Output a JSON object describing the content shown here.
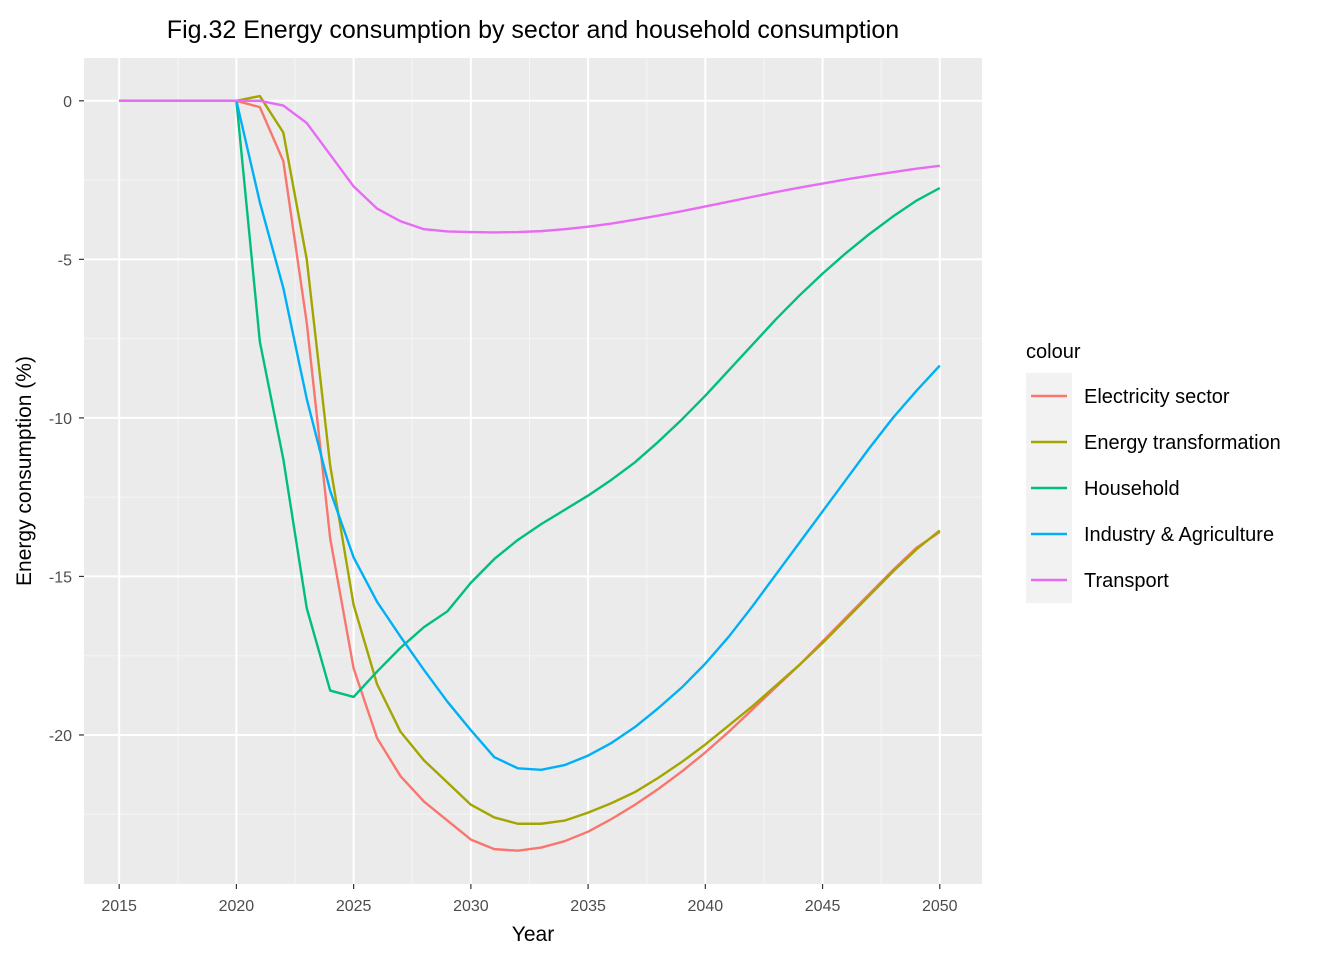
{
  "chart_data": {
    "type": "line",
    "title": "Fig.32 Energy consumption by sector and household consumption",
    "xlabel": "Year",
    "ylabel": "Energy consumption (%)",
    "xlim": [
      2013.5,
      2051.8
    ],
    "ylim": [
      -24.7,
      1.35
    ],
    "x_ticks": [
      2015,
      2020,
      2025,
      2030,
      2035,
      2040,
      2045,
      2050
    ],
    "x_tick_labels": [
      "2015",
      "2020",
      "2025",
      "2030",
      "2035",
      "2040",
      "2045",
      "2050"
    ],
    "y_ticks": [
      0,
      -5,
      -10,
      -15,
      -20
    ],
    "y_tick_labels": [
      "0",
      "-5",
      "-10",
      "-15",
      "-20"
    ],
    "grid": true,
    "legend": {
      "title": "colour",
      "position": "right"
    },
    "series": [
      {
        "name": "Electricity sector",
        "color": "#F8766D",
        "x": [
          2015,
          2016,
          2017,
          2018,
          2019,
          2020,
          2021,
          2022,
          2023,
          2024,
          2025,
          2026,
          2027,
          2028,
          2029,
          2030,
          2031,
          2032,
          2033,
          2034,
          2035,
          2036,
          2037,
          2038,
          2039,
          2040,
          2041,
          2042,
          2043,
          2044,
          2045,
          2046,
          2047,
          2048,
          2049,
          2050
        ],
        "y": [
          0,
          0,
          0,
          0,
          0,
          0,
          -0.2,
          -1.9,
          -7.0,
          -13.8,
          -17.9,
          -20.1,
          -21.3,
          -22.1,
          -22.7,
          -23.3,
          -23.6,
          -23.65,
          -23.55,
          -23.35,
          -23.05,
          -22.65,
          -22.2,
          -21.7,
          -21.15,
          -20.55,
          -19.9,
          -19.2,
          -18.5,
          -17.8,
          -17.05,
          -16.3,
          -15.55,
          -14.8,
          -14.1,
          -13.6
        ]
      },
      {
        "name": "Energy transformation",
        "color": "#A3A500",
        "x": [
          2015,
          2016,
          2017,
          2018,
          2019,
          2020,
          2021,
          2022,
          2023,
          2024,
          2025,
          2026,
          2027,
          2028,
          2029,
          2030,
          2031,
          2032,
          2033,
          2034,
          2035,
          2036,
          2037,
          2038,
          2039,
          2040,
          2041,
          2042,
          2043,
          2044,
          2045,
          2046,
          2047,
          2048,
          2049,
          2050
        ],
        "y": [
          0,
          0,
          0,
          0,
          0,
          0,
          0.15,
          -1.0,
          -5.0,
          -11.5,
          -15.9,
          -18.4,
          -19.9,
          -20.8,
          -21.5,
          -22.2,
          -22.6,
          -22.8,
          -22.8,
          -22.7,
          -22.45,
          -22.15,
          -21.8,
          -21.35,
          -20.85,
          -20.3,
          -19.7,
          -19.1,
          -18.45,
          -17.8,
          -17.1,
          -16.35,
          -15.6,
          -14.85,
          -14.15,
          -13.55
        ]
      },
      {
        "name": "Household",
        "color": "#00BF7D",
        "x": [
          2015,
          2016,
          2017,
          2018,
          2019,
          2020,
          2021,
          2022,
          2023,
          2024,
          2025,
          2026,
          2027,
          2028,
          2029,
          2030,
          2031,
          2032,
          2033,
          2034,
          2035,
          2036,
          2037,
          2038,
          2039,
          2040,
          2041,
          2042,
          2043,
          2044,
          2045,
          2046,
          2047,
          2048,
          2049,
          2050
        ],
        "y": [
          0,
          0,
          0,
          0,
          0,
          0,
          -7.6,
          -11.3,
          -16.0,
          -18.6,
          -18.8,
          -18.0,
          -17.25,
          -16.6,
          -16.1,
          -15.2,
          -14.45,
          -13.85,
          -13.35,
          -12.9,
          -12.45,
          -11.95,
          -11.4,
          -10.75,
          -10.05,
          -9.3,
          -8.5,
          -7.7,
          -6.9,
          -6.15,
          -5.45,
          -4.8,
          -4.2,
          -3.65,
          -3.15,
          -2.75
        ]
      },
      {
        "name": "Industry & Agriculture",
        "color": "#00B0F6",
        "x": [
          2015,
          2016,
          2017,
          2018,
          2019,
          2020,
          2021,
          2022,
          2023,
          2024,
          2025,
          2026,
          2027,
          2028,
          2029,
          2030,
          2031,
          2032,
          2033,
          2034,
          2035,
          2036,
          2037,
          2038,
          2039,
          2040,
          2041,
          2042,
          2043,
          2044,
          2045,
          2046,
          2047,
          2048,
          2049,
          2050
        ],
        "y": [
          0,
          0,
          0,
          0,
          0,
          0,
          -3.2,
          -5.9,
          -9.4,
          -12.3,
          -14.4,
          -15.8,
          -16.9,
          -17.95,
          -18.95,
          -19.85,
          -20.7,
          -21.05,
          -21.1,
          -20.95,
          -20.65,
          -20.25,
          -19.75,
          -19.15,
          -18.5,
          -17.75,
          -16.9,
          -15.95,
          -14.95,
          -13.95,
          -12.95,
          -11.95,
          -10.95,
          -10.0,
          -9.15,
          -8.35
        ]
      },
      {
        "name": "Transport",
        "color": "#E76BF3",
        "x": [
          2015,
          2016,
          2017,
          2018,
          2019,
          2020,
          2021,
          2022,
          2023,
          2024,
          2025,
          2026,
          2027,
          2028,
          2029,
          2030,
          2031,
          2032,
          2033,
          2034,
          2035,
          2036,
          2037,
          2038,
          2039,
          2040,
          2041,
          2042,
          2043,
          2044,
          2045,
          2046,
          2047,
          2048,
          2049,
          2050
        ],
        "y": [
          0,
          0,
          0,
          0,
          0,
          0,
          0.0,
          -0.15,
          -0.7,
          -1.7,
          -2.7,
          -3.4,
          -3.8,
          -4.05,
          -4.12,
          -4.14,
          -4.15,
          -4.14,
          -4.11,
          -4.05,
          -3.97,
          -3.87,
          -3.75,
          -3.62,
          -3.48,
          -3.33,
          -3.18,
          -3.03,
          -2.88,
          -2.74,
          -2.61,
          -2.48,
          -2.36,
          -2.25,
          -2.14,
          -2.05
        ]
      }
    ]
  }
}
